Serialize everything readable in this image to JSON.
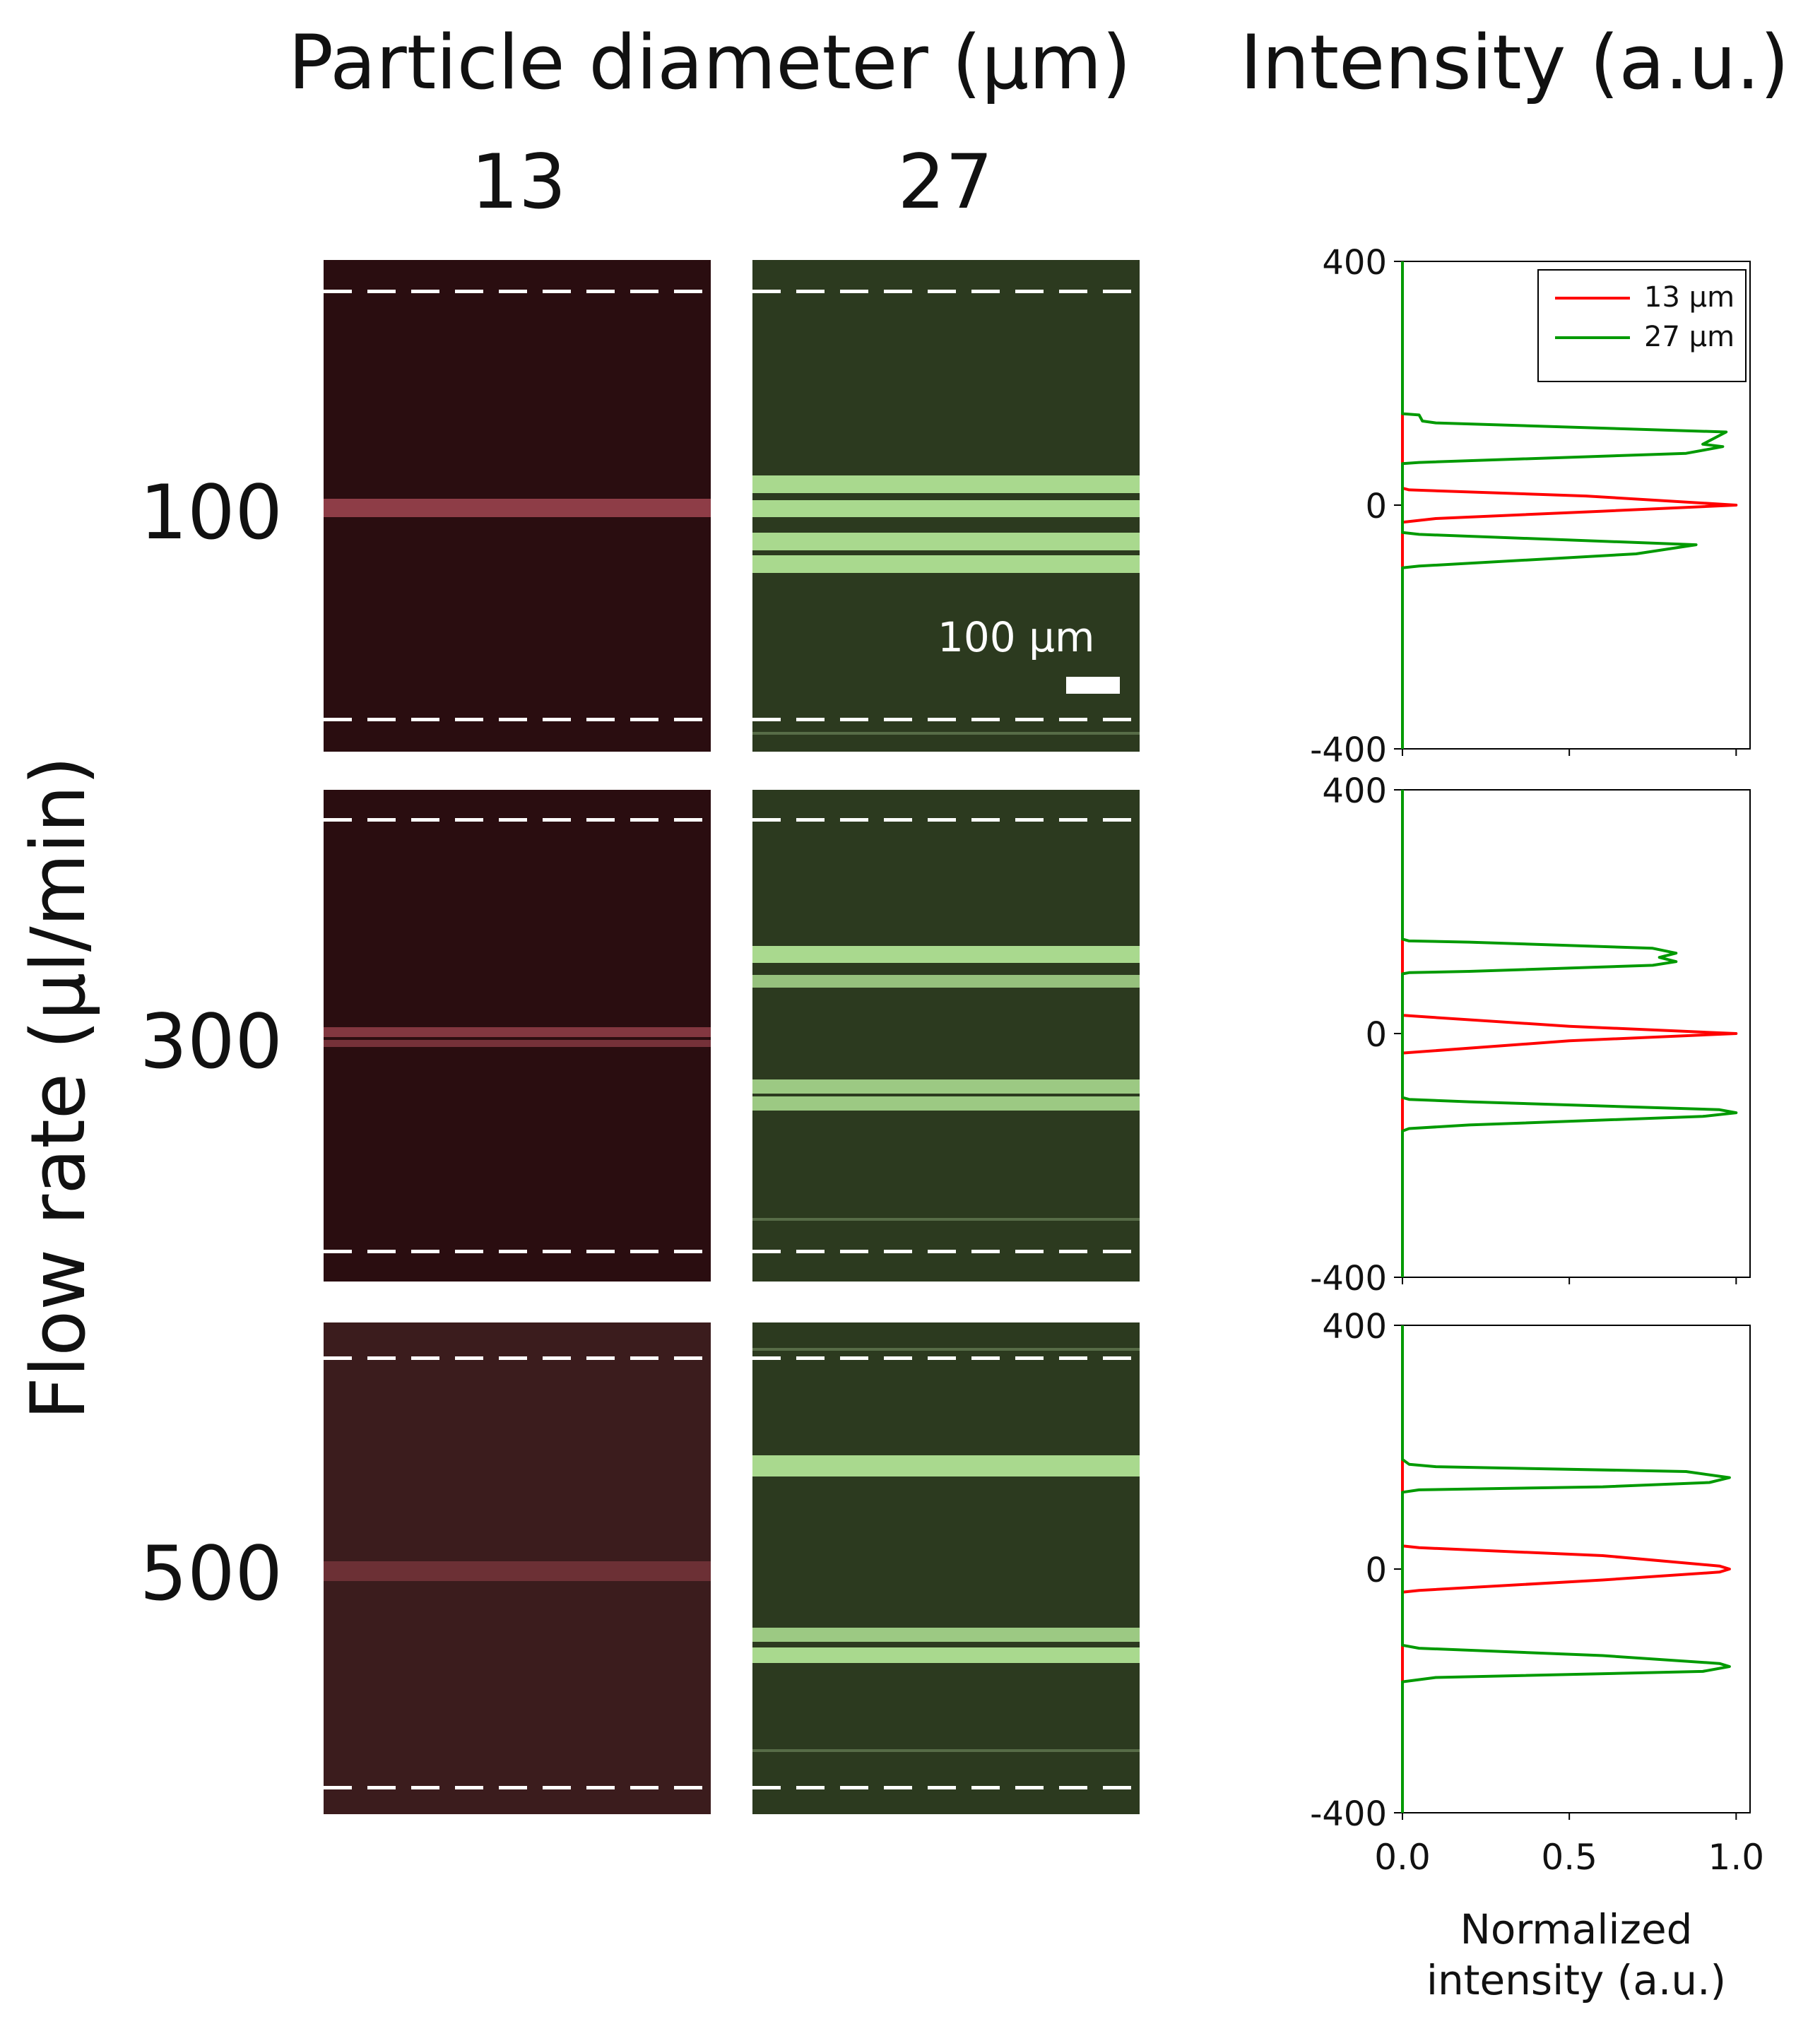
{
  "header": {
    "particle_title": "Particle diameter (μm)",
    "intensity_title": "Intensity (a.u.)",
    "columns": [
      "13",
      "27"
    ]
  },
  "y_axis_title": "Flow rate (μl/min)",
  "rows": [
    "100",
    "300",
    "500"
  ],
  "scale_bar": {
    "label": "100 μm"
  },
  "colors": {
    "red": "#ff0000",
    "green": "#009a00",
    "red_stream": "#a84a55",
    "green_stream": "#a9d98e"
  },
  "chart_data": [
    {
      "type": "line",
      "flow_rate": "100",
      "xlim": [
        0,
        1.0
      ],
      "ylim": [
        -400,
        400
      ],
      "yticks": [
        "400",
        "0",
        "-400"
      ],
      "xticks": [],
      "legend": {
        "entries": [
          "13 μm",
          "27 μm"
        ],
        "position": "top-right"
      },
      "series": [
        {
          "name": "13 μm",
          "color": "#ff0000",
          "points": [
            [
              0,
              400
            ],
            [
              0,
              28
            ],
            [
              0.02,
              25
            ],
            [
              0.55,
              15
            ],
            [
              1.0,
              0
            ],
            [
              0.6,
              -10
            ],
            [
              0.1,
              -22
            ],
            [
              0,
              -28
            ],
            [
              0,
              -400
            ]
          ]
        },
        {
          "name": "27 μm",
          "color": "#009a00",
          "points": [
            [
              0,
              400
            ],
            [
              0,
              150
            ],
            [
              0.05,
              148
            ],
            [
              0.06,
              138
            ],
            [
              0.1,
              135
            ],
            [
              0.97,
              120
            ],
            [
              0.9,
              100
            ],
            [
              0.96,
              96
            ],
            [
              0.85,
              85
            ],
            [
              0.05,
              70
            ],
            [
              0,
              68
            ],
            [
              0,
              -45
            ],
            [
              0.05,
              -48
            ],
            [
              0.88,
              -65
            ],
            [
              0.7,
              -80
            ],
            [
              0.05,
              -100
            ],
            [
              0,
              -103
            ],
            [
              0,
              -400
            ]
          ]
        }
      ]
    },
    {
      "type": "line",
      "flow_rate": "300",
      "xlim": [
        0,
        1.0
      ],
      "ylim": [
        -400,
        400
      ],
      "yticks": [
        "400",
        "0",
        "-400"
      ],
      "xticks": [],
      "series": [
        {
          "name": "13 μm",
          "color": "#ff0000",
          "points": [
            [
              0,
              400
            ],
            [
              0,
              30
            ],
            [
              0.05,
              28
            ],
            [
              0.5,
              12
            ],
            [
              1.0,
              0
            ],
            [
              0.5,
              -12
            ],
            [
              0.05,
              -30
            ],
            [
              0,
              -32
            ],
            [
              0,
              -400
            ]
          ]
        },
        {
          "name": "27 μm",
          "color": "#009a00",
          "points": [
            [
              0,
              400
            ],
            [
              0,
              155
            ],
            [
              0.02,
              152
            ],
            [
              0.2,
              150
            ],
            [
              0.75,
              140
            ],
            [
              0.82,
              132
            ],
            [
              0.77,
              125
            ],
            [
              0.82,
              118
            ],
            [
              0.75,
              112
            ],
            [
              0.2,
              102
            ],
            [
              0.02,
              100
            ],
            [
              0,
              98
            ],
            [
              0,
              -105
            ],
            [
              0.02,
              -108
            ],
            [
              0.2,
              -112
            ],
            [
              0.95,
              -125
            ],
            [
              1.0,
              -130
            ],
            [
              0.9,
              -136
            ],
            [
              0.2,
              -150
            ],
            [
              0.02,
              -156
            ],
            [
              0,
              -160
            ],
            [
              0,
              -400
            ]
          ]
        }
      ]
    },
    {
      "type": "line",
      "flow_rate": "500",
      "xlim": [
        0,
        1.0
      ],
      "ylim": [
        -400,
        400
      ],
      "yticks": [
        "400",
        "0",
        "-400"
      ],
      "xticks": [
        "0.0",
        "0.5",
        "1.0"
      ],
      "xlabel": [
        "Normalized",
        "intensity (a.u.)"
      ],
      "series": [
        {
          "name": "13 μm",
          "color": "#ff0000",
          "points": [
            [
              0,
              400
            ],
            [
              0,
              38
            ],
            [
              0.05,
              35
            ],
            [
              0.6,
              22
            ],
            [
              0.95,
              5
            ],
            [
              0.98,
              0
            ],
            [
              0.95,
              -5
            ],
            [
              0.6,
              -18
            ],
            [
              0.05,
              -35
            ],
            [
              0,
              -38
            ],
            [
              0,
              -400
            ]
          ]
        },
        {
          "name": "27 μm",
          "color": "#009a00",
          "points": [
            [
              0,
              400
            ],
            [
              0,
              180
            ],
            [
              0.02,
              172
            ],
            [
              0.1,
              168
            ],
            [
              0.85,
              160
            ],
            [
              0.98,
              150
            ],
            [
              0.92,
              142
            ],
            [
              0.6,
              135
            ],
            [
              0.05,
              130
            ],
            [
              0,
              126
            ],
            [
              0,
              -125
            ],
            [
              0.05,
              -130
            ],
            [
              0.6,
              -142
            ],
            [
              0.95,
              -155
            ],
            [
              0.98,
              -160
            ],
            [
              0.9,
              -168
            ],
            [
              0.1,
              -178
            ],
            [
              0,
              -185
            ],
            [
              0,
              -400
            ]
          ]
        }
      ]
    }
  ]
}
